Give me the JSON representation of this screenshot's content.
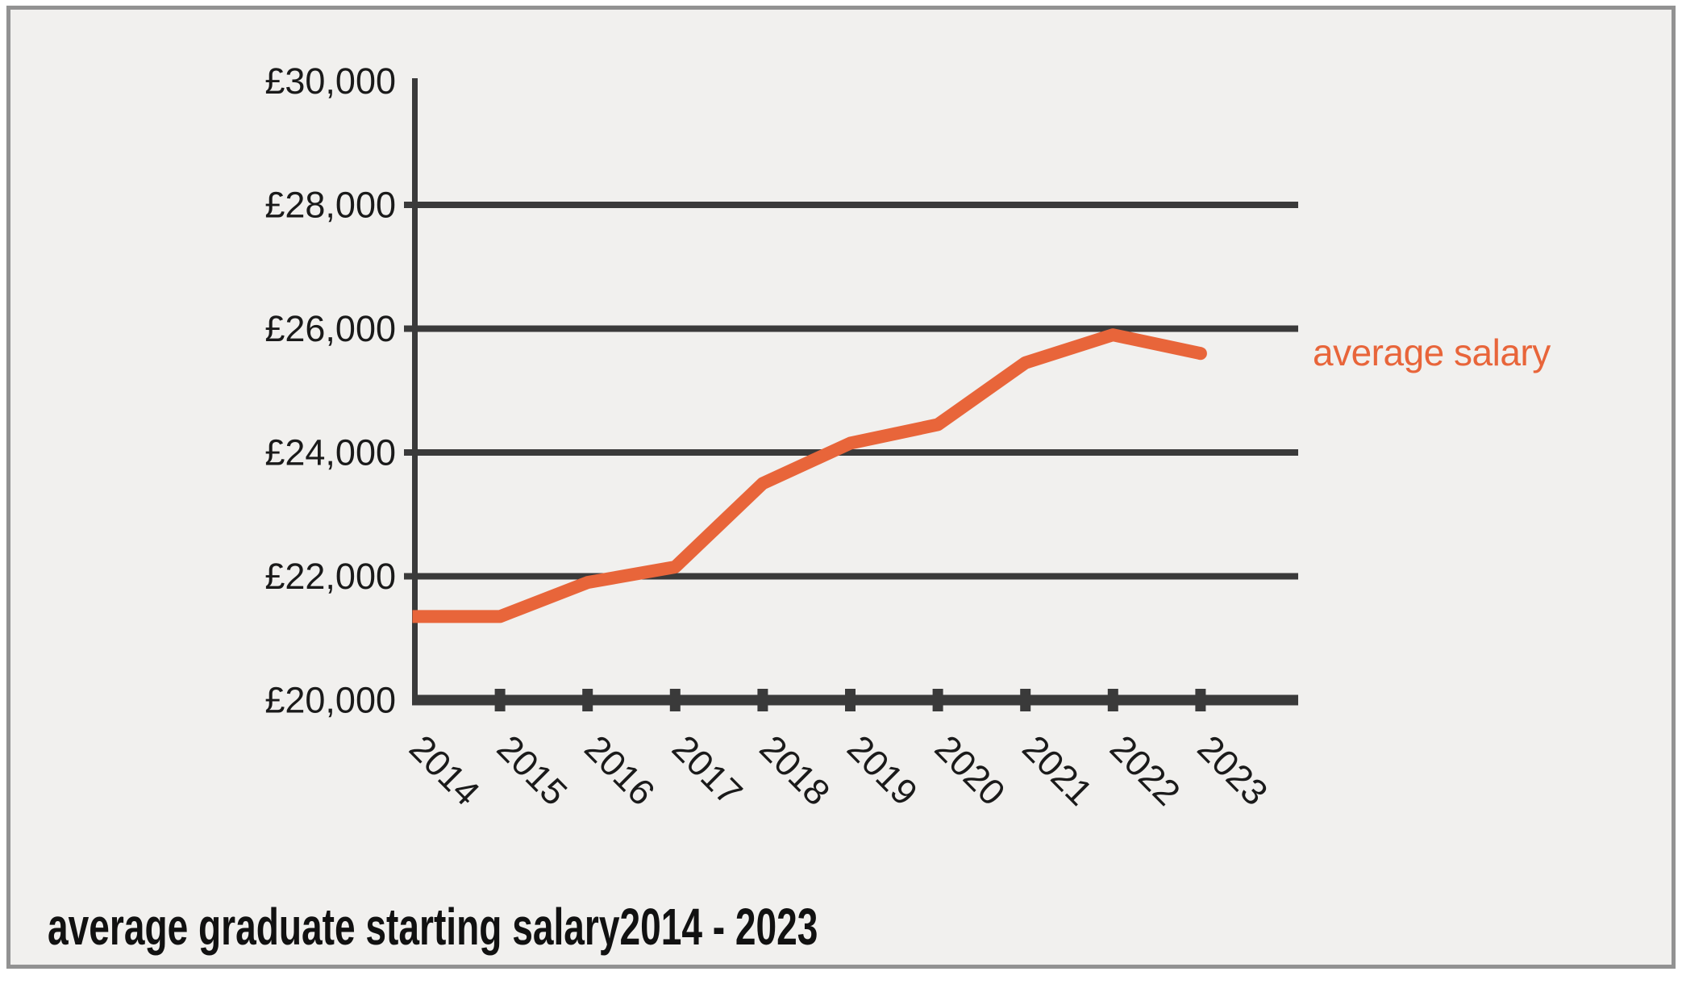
{
  "chart_data": {
    "type": "line",
    "title": "average graduate starting salary2014 - 2023",
    "legend_label": "average salary",
    "categories": [
      "2014",
      "2015",
      "2016",
      "2017",
      "2018",
      "2019",
      "2020",
      "2021",
      "2022",
      "2023"
    ],
    "series": [
      {
        "name": "average salary",
        "values": [
          21350,
          21350,
          21900,
          22150,
          23500,
          24150,
          24450,
          25450,
          25900,
          25600
        ]
      }
    ],
    "ylim": [
      20000,
      30000
    ],
    "y_ticks": [
      20000,
      22000,
      24000,
      26000,
      28000,
      30000
    ],
    "y_tick_labels": [
      "£20,000",
      "£22,000",
      "£24,000",
      "£26,000",
      "£28,000",
      "£30,000"
    ],
    "xlabel": "",
    "ylabel": "",
    "grid": "horizontal",
    "legend_position": "right of line end",
    "colors": {
      "line": "#E8653A",
      "legend_text": "#E8653A",
      "axis": "#3A3A3A",
      "tick_text": "#1A1A1A",
      "title_text": "#111111",
      "background": "#F1F0EE",
      "frame_border": "#929292"
    }
  }
}
